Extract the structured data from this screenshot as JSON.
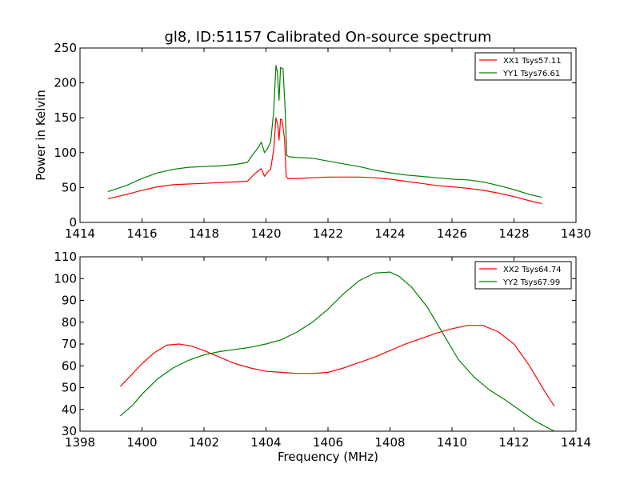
{
  "chart_data": [
    {
      "type": "line",
      "title": "gl8, ID:51157 Calibrated On-source spectrum",
      "xlabel": "",
      "ylabel": "Power in Kelvin",
      "xlim": [
        1414,
        1430
      ],
      "ylim": [
        0,
        250
      ],
      "xticks": [
        1414,
        1416,
        1418,
        1420,
        1422,
        1424,
        1426,
        1428,
        1430
      ],
      "yticks": [
        0,
        50,
        100,
        150,
        200,
        250
      ],
      "grid": false,
      "legend_position": "top-right",
      "series": [
        {
          "name": "XX1 Tsys57.11",
          "color": "#ff0000",
          "points": [
            [
              1414.9,
              34
            ],
            [
              1415.5,
              40
            ],
            [
              1416.0,
              46
            ],
            [
              1416.5,
              51
            ],
            [
              1417.0,
              54
            ],
            [
              1417.5,
              55
            ],
            [
              1418.0,
              56
            ],
            [
              1418.5,
              57
            ],
            [
              1419.0,
              58
            ],
            [
              1419.4,
              59
            ],
            [
              1419.6,
              68
            ],
            [
              1419.75,
              74
            ],
            [
              1419.85,
              77
            ],
            [
              1419.95,
              66
            ],
            [
              1420.05,
              72
            ],
            [
              1420.15,
              76
            ],
            [
              1420.25,
              105
            ],
            [
              1420.32,
              150
            ],
            [
              1420.38,
              140
            ],
            [
              1420.42,
              118
            ],
            [
              1420.47,
              148
            ],
            [
              1420.52,
              147
            ],
            [
              1420.6,
              120
            ],
            [
              1420.65,
              66
            ],
            [
              1420.7,
              63
            ],
            [
              1421.0,
              63
            ],
            [
              1421.5,
              64
            ],
            [
              1422.0,
              65
            ],
            [
              1422.5,
              65
            ],
            [
              1423.0,
              65
            ],
            [
              1423.5,
              64
            ],
            [
              1424.0,
              62
            ],
            [
              1424.5,
              59
            ],
            [
              1425.0,
              56
            ],
            [
              1425.5,
              53
            ],
            [
              1426.0,
              51
            ],
            [
              1426.5,
              49
            ],
            [
              1427.0,
              46
            ],
            [
              1427.5,
              42
            ],
            [
              1428.0,
              37
            ],
            [
              1428.5,
              31
            ],
            [
              1428.9,
              27
            ]
          ]
        },
        {
          "name": "YY1 Tsys76.61",
          "color": "#008000",
          "points": [
            [
              1414.9,
              44
            ],
            [
              1415.5,
              53
            ],
            [
              1416.0,
              63
            ],
            [
              1416.5,
              71
            ],
            [
              1417.0,
              76
            ],
            [
              1417.5,
              79
            ],
            [
              1418.0,
              80
            ],
            [
              1418.5,
              81
            ],
            [
              1419.0,
              83
            ],
            [
              1419.4,
              86
            ],
            [
              1419.55,
              96
            ],
            [
              1419.7,
              104
            ],
            [
              1419.85,
              115
            ],
            [
              1419.95,
              100
            ],
            [
              1420.05,
              106
            ],
            [
              1420.15,
              115
            ],
            [
              1420.25,
              160
            ],
            [
              1420.32,
              225
            ],
            [
              1420.37,
              215
            ],
            [
              1420.42,
              175
            ],
            [
              1420.47,
              222
            ],
            [
              1420.55,
              220
            ],
            [
              1420.62,
              160
            ],
            [
              1420.67,
              96
            ],
            [
              1420.75,
              94
            ],
            [
              1421.0,
              93
            ],
            [
              1421.5,
              92
            ],
            [
              1422.0,
              88
            ],
            [
              1422.5,
              84
            ],
            [
              1423.0,
              80
            ],
            [
              1423.5,
              75
            ],
            [
              1424.0,
              71
            ],
            [
              1424.5,
              68
            ],
            [
              1425.0,
              66
            ],
            [
              1425.5,
              64
            ],
            [
              1426.0,
              62
            ],
            [
              1426.5,
              61
            ],
            [
              1427.0,
              58
            ],
            [
              1427.5,
              53
            ],
            [
              1428.0,
              47
            ],
            [
              1428.5,
              40
            ],
            [
              1428.9,
              36
            ]
          ]
        }
      ]
    },
    {
      "type": "line",
      "title": "",
      "xlabel": "Frequency (MHz)",
      "ylabel": "",
      "xlim": [
        1398,
        1414
      ],
      "ylim": [
        30,
        110
      ],
      "xticks": [
        1398,
        1400,
        1402,
        1404,
        1406,
        1408,
        1410,
        1412,
        1414
      ],
      "yticks": [
        30,
        40,
        50,
        60,
        70,
        80,
        90,
        100,
        110
      ],
      "grid": false,
      "legend_position": "top-right",
      "series": [
        {
          "name": "XX2 Tsys64.74",
          "color": "#ff0000",
          "points": [
            [
              1399.3,
              50.5
            ],
            [
              1399.6,
              55
            ],
            [
              1400.0,
              61
            ],
            [
              1400.4,
              66
            ],
            [
              1400.8,
              69.5
            ],
            [
              1401.2,
              70
            ],
            [
              1401.6,
              69
            ],
            [
              1402.0,
              67
            ],
            [
              1402.5,
              64
            ],
            [
              1403.0,
              61
            ],
            [
              1403.5,
              59
            ],
            [
              1404.0,
              57.5
            ],
            [
              1404.5,
              57
            ],
            [
              1405.0,
              56.5
            ],
            [
              1405.5,
              56.5
            ],
            [
              1406.0,
              57
            ],
            [
              1406.5,
              59
            ],
            [
              1407.0,
              61.5
            ],
            [
              1407.5,
              64
            ],
            [
              1408.0,
              67
            ],
            [
              1408.5,
              70
            ],
            [
              1409.0,
              72.5
            ],
            [
              1409.5,
              75
            ],
            [
              1410.0,
              77
            ],
            [
              1410.5,
              78.5
            ],
            [
              1411.0,
              78.5
            ],
            [
              1411.5,
              75.5
            ],
            [
              1412.0,
              70
            ],
            [
              1412.5,
              60
            ],
            [
              1413.0,
              48
            ],
            [
              1413.3,
              41.5
            ]
          ]
        },
        {
          "name": "YY2 Tsys67.99",
          "color": "#008000",
          "points": [
            [
              1399.3,
              37
            ],
            [
              1399.7,
              42
            ],
            [
              1400.0,
              47
            ],
            [
              1400.5,
              54
            ],
            [
              1401.0,
              59
            ],
            [
              1401.5,
              62.5
            ],
            [
              1402.0,
              65
            ],
            [
              1402.5,
              66.5
            ],
            [
              1403.0,
              67.5
            ],
            [
              1403.5,
              68.5
            ],
            [
              1404.0,
              70
            ],
            [
              1404.5,
              72
            ],
            [
              1405.0,
              75.5
            ],
            [
              1405.5,
              80
            ],
            [
              1406.0,
              86
            ],
            [
              1406.5,
              93
            ],
            [
              1407.0,
              99
            ],
            [
              1407.5,
              102.5
            ],
            [
              1408.0,
              103
            ],
            [
              1408.3,
              101
            ],
            [
              1408.7,
              96
            ],
            [
              1409.2,
              87
            ],
            [
              1409.7,
              75
            ],
            [
              1410.2,
              63
            ],
            [
              1410.7,
              55
            ],
            [
              1411.2,
              49
            ],
            [
              1411.7,
              44.5
            ],
            [
              1412.2,
              39.5
            ],
            [
              1412.7,
              34.5
            ],
            [
              1413.3,
              30
            ]
          ]
        }
      ]
    }
  ]
}
